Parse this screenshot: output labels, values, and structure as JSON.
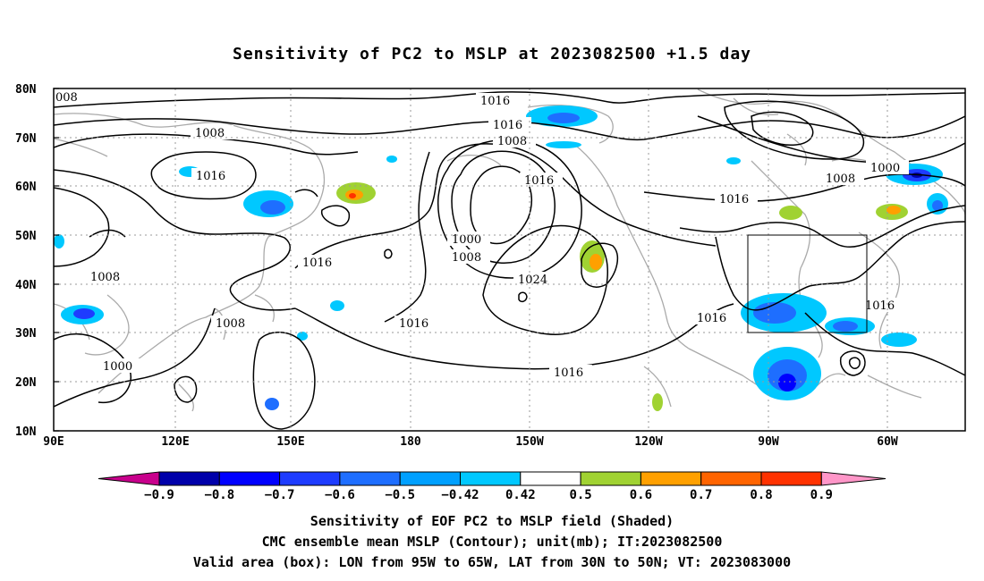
{
  "title": "Sensitivity of PC2 to MSLP at 2023082500 +1.5 day",
  "latitudes": [
    "80N",
    "70N",
    "60N",
    "50N",
    "40N",
    "30N",
    "20N",
    "10N"
  ],
  "longitudes": [
    "90E",
    "120E",
    "150E",
    "180",
    "150W",
    "120W",
    "90W",
    "60W"
  ],
  "contour_labels": {
    "l1016_top": "1016",
    "l1016_b": "1016",
    "l1008_c": "1008",
    "l1008_a": "1008",
    "l1016_d": "1016",
    "l1016_e": "1016",
    "l1000_f": "1000",
    "l1008_g": "1008",
    "l1016_h": "1016",
    "l1008_i": "1008",
    "l1000_j": "1000",
    "l1008_k": "1008",
    "l1024_l": "1024",
    "l1016_m": "1016",
    "l1016_n": "1016",
    "l1008_o": "1008",
    "l1000_p": "1000",
    "l1016_q": "1016",
    "l1016_r": "1016",
    "l008_s": "008"
  },
  "colorbar": {
    "labels": [
      "-0.9",
      "-0.8",
      "-0.7",
      "-0.6",
      "-0.5",
      "-0.42",
      "0.42",
      "0.5",
      "0.6",
      "0.7",
      "0.8",
      "0.9"
    ],
    "colors": [
      "#0000aa",
      "#0000ff",
      "#1e3cff",
      "#1e6eff",
      "#00a0ff",
      "#00c8ff",
      "#ffffff",
      "#a0d232",
      "#ffa000",
      "#ff6400",
      "#ff3200",
      "#ff0000"
    ],
    "left_arrow_color": "#c8008c",
    "right_arrow_color": "#ff96c8"
  },
  "captions": [
    "Sensitivity of EOF PC2 to MSLP field (Shaded)",
    "CMC ensemble mean MSLP (Contour); unit(mb); IT:2023082500",
    "Valid area (box): LON from 95W to 65W, LAT from 30N to 50N; VT: 2023083000"
  ]
}
